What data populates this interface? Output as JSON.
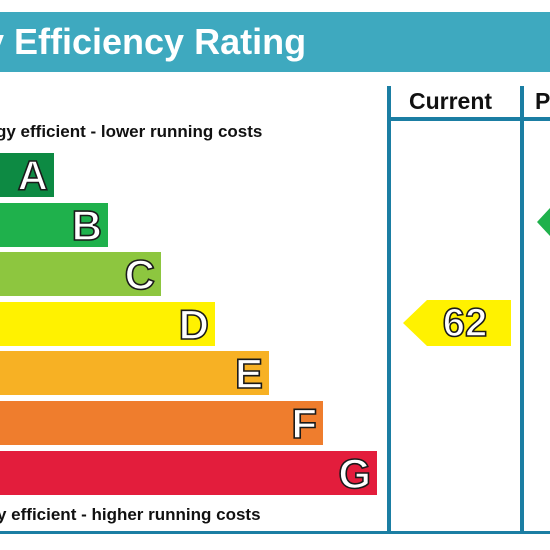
{
  "title": "gy Efficiency Rating",
  "columns": {
    "current": "Current",
    "potential": "P"
  },
  "captions": {
    "top": "gy efficient - lower running costs",
    "bottom": "y efficient - higher running costs"
  },
  "colors": {
    "title_bar": "#3ea9bf",
    "frame": "#1b7ea3",
    "A": "#0d8a43",
    "B": "#1fb14c",
    "C": "#8dc63f",
    "D": "#fff200",
    "E": "#f7b124",
    "F": "#ef7d2d",
    "G": "#e31d3c"
  },
  "chart_data": {
    "type": "bar",
    "categories": [
      "A",
      "B",
      "C",
      "D",
      "E",
      "F",
      "G"
    ],
    "band_labels": [
      "A",
      "B",
      "C",
      "D",
      "E",
      "F",
      "G"
    ],
    "current_rating": {
      "value": 62,
      "band": "D"
    },
    "potential_rating": {
      "value": null,
      "band": "B"
    }
  }
}
